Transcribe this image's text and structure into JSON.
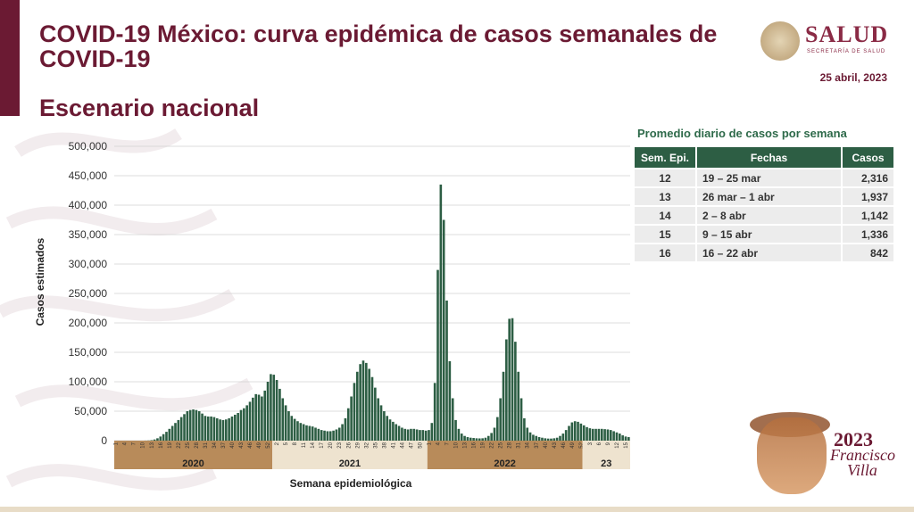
{
  "header": {
    "title": "COVID-19 México: curva epidémica de casos semanales de COVID-19",
    "subtitle": "Escenario nacional",
    "logo_text": "SALUD",
    "logo_sub": "SECRETARÍA DE SALUD",
    "date": "25 abril, 2023"
  },
  "table": {
    "title": "Promedio diario de casos por semana",
    "headers": [
      "Sem. Epi.",
      "Fechas",
      "Casos"
    ],
    "rows": [
      [
        "12",
        "19 – 25 mar",
        "2,316"
      ],
      [
        "13",
        "26 mar –  1 abr",
        "1,937"
      ],
      [
        "14",
        "2 – 8 abr",
        "1,142"
      ],
      [
        "15",
        "9 – 15 abr",
        "1,336"
      ],
      [
        "16",
        "16 – 22 abr",
        "842"
      ]
    ]
  },
  "decor": {
    "year": "2023",
    "name": "Francisco Villa"
  },
  "colors": {
    "brand": "#6b1a33",
    "bars": "#2d5e44",
    "year_dark": "#b88b5a",
    "year_light": "#eee3cf"
  },
  "chart_data": {
    "type": "bar",
    "ylabel": "Casos estimados",
    "xlabel": "Semana epidemiológica",
    "ylim": [
      0,
      500000
    ],
    "yticks": [
      0,
      50000,
      100000,
      150000,
      200000,
      250000,
      300000,
      350000,
      400000,
      450000,
      500000
    ],
    "ytick_labels": [
      "0",
      "50,000",
      "100,000",
      "150,000",
      "200,000",
      "250,000",
      "300,000",
      "350,000",
      "400,000",
      "450,000",
      "500,000"
    ],
    "grid": true,
    "years": [
      {
        "label": "2020",
        "weeks": 53,
        "start_week": 1
      },
      {
        "label": "2021",
        "weeks": 52,
        "start_week": 1
      },
      {
        "label": "2022",
        "weeks": 52,
        "start_week": 1
      },
      {
        "label": "23",
        "weeks": 16,
        "start_week": 1
      }
    ],
    "values": [
      0,
      0,
      0,
      0,
      0,
      0,
      0,
      0,
      0,
      0,
      100,
      300,
      800,
      2000,
      4000,
      7000,
      11000,
      15000,
      20000,
      25000,
      30000,
      35000,
      40000,
      45000,
      50000,
      52000,
      53000,
      52000,
      50000,
      46000,
      42000,
      41000,
      41000,
      40000,
      38000,
      36000,
      35000,
      36000,
      38000,
      41000,
      44000,
      47000,
      52000,
      55000,
      60000,
      66000,
      73000,
      79000,
      78000,
      75000,
      85000,
      100000,
      113000,
      112000,
      103000,
      88000,
      72000,
      60000,
      50000,
      42000,
      37000,
      33000,
      30000,
      28000,
      26000,
      25000,
      24000,
      22000,
      20000,
      18000,
      17000,
      16000,
      16000,
      17000,
      19000,
      22000,
      28000,
      38000,
      55000,
      75000,
      98000,
      117000,
      130000,
      136000,
      132000,
      122000,
      108000,
      90000,
      72000,
      60000,
      50000,
      42000,
      36000,
      32000,
      28000,
      25000,
      22000,
      20000,
      19000,
      20000,
      20000,
      19000,
      18000,
      18000,
      17000,
      18000,
      30000,
      98000,
      290000,
      435000,
      375000,
      238000,
      135000,
      72000,
      35000,
      20000,
      12000,
      8000,
      6000,
      5000,
      4500,
      4000,
      3800,
      4000,
      5000,
      8000,
      13000,
      22000,
      40000,
      72000,
      117000,
      172000,
      207000,
      208000,
      168000,
      117000,
      72000,
      38000,
      22000,
      14000,
      10000,
      8000,
      6000,
      5000,
      4000,
      3500,
      3500,
      4000,
      5000,
      8000,
      12000,
      18000,
      25000,
      31000,
      33000,
      32000,
      29000,
      26000,
      23000,
      21000,
      20000,
      20000,
      20000,
      20000,
      19500,
      19000,
      18000,
      16000,
      14000,
      12000,
      9000,
      7000,
      6000
    ],
    "tick_labels": {
      "2020": [
        "1",
        "4",
        "7",
        "10",
        "13",
        "16",
        "19",
        "22",
        "25",
        "28",
        "31",
        "34",
        "37",
        "40",
        "43",
        "46",
        "49",
        "52"
      ],
      "2021": [
        "2",
        "5",
        "8",
        "11",
        "14",
        "17",
        "20",
        "23",
        "26",
        "29",
        "32",
        "35",
        "38",
        "41",
        "44",
        "47",
        "50"
      ],
      "2022": [
        "1",
        "4",
        "7",
        "10",
        "13",
        "16",
        "19",
        "22",
        "25",
        "28",
        "31",
        "34",
        "37",
        "40",
        "43",
        "46",
        "49",
        "52"
      ],
      "23": [
        "3",
        "6",
        "9",
        "12",
        "15"
      ]
    }
  }
}
